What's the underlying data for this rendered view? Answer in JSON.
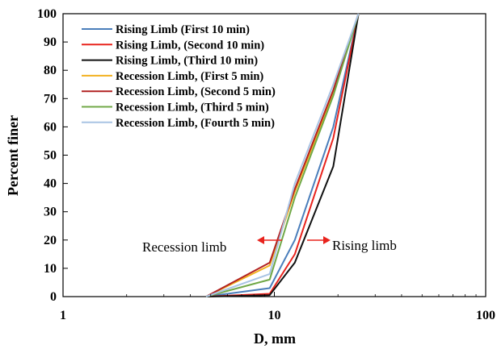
{
  "chart_data": {
    "type": "line",
    "xlabel": "D, mm",
    "ylabel": "Percent finer",
    "x_scale": "log",
    "xlim": [
      1,
      100
    ],
    "ylim": [
      0,
      100
    ],
    "x_ticks": [
      "1",
      "10",
      "100"
    ],
    "y_ticks": [
      "0",
      "10",
      "20",
      "30",
      "40",
      "50",
      "60",
      "70",
      "80",
      "90",
      "100"
    ],
    "legend_position": "top-left",
    "series": [
      {
        "name": "Rising Limb (First 10 min)",
        "color": "#4a7ebb",
        "x": [
          4.75,
          9.5,
          12.5,
          19,
          25
        ],
        "y": [
          0,
          3,
          20,
          60,
          100
        ]
      },
      {
        "name": "Rising Limb, (Second 10 min)",
        "color": "#e8231d",
        "x": [
          4.75,
          9.5,
          12.5,
          19,
          25
        ],
        "y": [
          0,
          1,
          15,
          56,
          100
        ]
      },
      {
        "name": "Rising Limb, (Third 10 min)",
        "color": "#111111",
        "x": [
          4.75,
          9.5,
          12.5,
          19,
          25
        ],
        "y": [
          0,
          0.5,
          12,
          46,
          100
        ]
      },
      {
        "name": "Recession Limb, (First 5 min)",
        "color": "#f2b01e",
        "x": [
          4.75,
          9.5,
          12.5,
          19,
          25
        ],
        "y": [
          0,
          11,
          37,
          72,
          100
        ]
      },
      {
        "name": "Recession Limb, (Second 5 min)",
        "color": "#b22222",
        "x": [
          4.75,
          9.5,
          12.5,
          19,
          25
        ],
        "y": [
          0,
          12,
          38,
          73,
          100
        ]
      },
      {
        "name": "Recession Limb, (Third 5 min)",
        "color": "#70a847",
        "x": [
          4.75,
          9.5,
          12.5,
          19,
          25
        ],
        "y": [
          0,
          6,
          35,
          71,
          100
        ]
      },
      {
        "name": "Recession Limb, (Fourth 5 min)",
        "color": "#a9c4e4",
        "x": [
          4.75,
          9.5,
          12.5,
          19,
          25
        ],
        "y": [
          0,
          8,
          40,
          75,
          100
        ]
      }
    ],
    "annotations": [
      {
        "text": "Recession limb",
        "arrow": "left"
      },
      {
        "text": "Rising limb",
        "arrow": "right"
      }
    ]
  }
}
